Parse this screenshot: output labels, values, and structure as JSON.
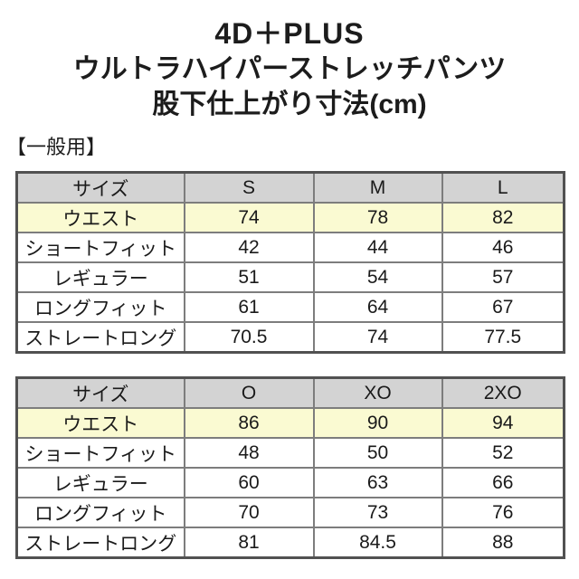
{
  "page_title": {
    "line1": "4D＋PLUS",
    "line2": "ウルトラハイパーストレッチパンツ",
    "line3": "股下仕上がり寸法(cm)"
  },
  "section_label": "【一般用】",
  "colors": {
    "header_bg": "#d3d3d3",
    "highlight_bg": "#fafad2",
    "border_inner": "#7d7d7d",
    "border_outer": "#515151",
    "text": "#111111"
  },
  "chart_data": [
    {
      "type": "table",
      "columns": [
        "サイズ",
        "S",
        "M",
        "L"
      ],
      "rows": [
        {
          "label": "ウエスト",
          "values": [
            "74",
            "78",
            "82"
          ],
          "highlight": true
        },
        {
          "label": "ショートフィット",
          "values": [
            "42",
            "44",
            "46"
          ],
          "highlight": false
        },
        {
          "label": "レギュラー",
          "values": [
            "51",
            "54",
            "57"
          ],
          "highlight": false
        },
        {
          "label": "ロングフィット",
          "values": [
            "61",
            "64",
            "67"
          ],
          "highlight": false
        },
        {
          "label": "ストレートロング",
          "values": [
            "70.5",
            "74",
            "77.5"
          ],
          "highlight": false
        }
      ]
    },
    {
      "type": "table",
      "columns": [
        "サイズ",
        "O",
        "XO",
        "2XO"
      ],
      "rows": [
        {
          "label": "ウエスト",
          "values": [
            "86",
            "90",
            "94"
          ],
          "highlight": true
        },
        {
          "label": "ショートフィット",
          "values": [
            "48",
            "50",
            "52"
          ],
          "highlight": false
        },
        {
          "label": "レギュラー",
          "values": [
            "60",
            "63",
            "66"
          ],
          "highlight": false
        },
        {
          "label": "ロングフィット",
          "values": [
            "70",
            "73",
            "76"
          ],
          "highlight": false
        },
        {
          "label": "ストレートロング",
          "values": [
            "81",
            "84.5",
            "88"
          ],
          "highlight": false
        }
      ]
    }
  ]
}
